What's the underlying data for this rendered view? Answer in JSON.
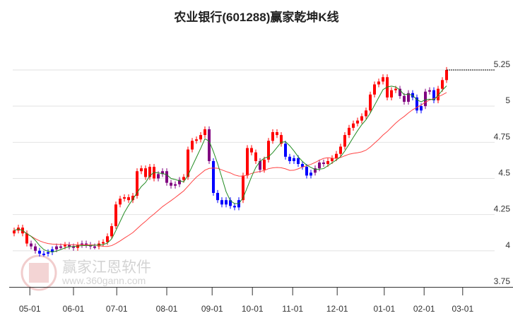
{
  "chart_data": {
    "type": "candlestick",
    "title": "农业银行(601288)赢家乾坤K线",
    "ylim": [
      3.75,
      5.25
    ],
    "yticks": [
      3.75,
      4,
      4.25,
      4.5,
      4.75,
      5,
      5.25
    ],
    "ytick_labels": [
      "3.75",
      "4",
      "4.25",
      "4.5",
      "4.75",
      "5",
      "5.25"
    ],
    "grid": true,
    "xticks": [
      {
        "label": "05-01",
        "pos": 3.7
      },
      {
        "label": "06-01",
        "pos": 14
      },
      {
        "label": "07-01",
        "pos": 24.2
      },
      {
        "label": "08-01",
        "pos": 36
      },
      {
        "label": "09-01",
        "pos": 46.7
      },
      {
        "label": "10-01",
        "pos": 56.2
      },
      {
        "label": "11-01",
        "pos": 65.7
      },
      {
        "label": "12-01",
        "pos": 76.2
      },
      {
        "label": "01-01",
        "pos": 87.3
      },
      {
        "label": "02-01",
        "pos": 96.7
      },
      {
        "label": "03-01",
        "pos": 105.8
      }
    ],
    "close": [
      4.14,
      4.16,
      4.12,
      4.05,
      4.03,
      4.0,
      3.98,
      3.98,
      3.99,
      4.01,
      4.03,
      4.03,
      4.04,
      4.03,
      4.02,
      4.04,
      4.05,
      4.04,
      4.03,
      4.03,
      4.05,
      4.06,
      4.1,
      4.17,
      4.32,
      4.36,
      4.37,
      4.35,
      4.38,
      4.55,
      4.57,
      4.51,
      4.58,
      4.5,
      4.53,
      4.55,
      4.47,
      4.45,
      4.46,
      4.49,
      4.51,
      4.7,
      4.76,
      4.77,
      4.8,
      4.84,
      4.62,
      4.4,
      4.35,
      4.32,
      4.35,
      4.31,
      4.3,
      4.35,
      4.52,
      4.71,
      4.68,
      4.62,
      4.56,
      4.63,
      4.76,
      4.82,
      4.8,
      4.74,
      4.65,
      4.62,
      4.64,
      4.6,
      4.58,
      4.52,
      4.54,
      4.57,
      4.61,
      4.6,
      4.62,
      4.64,
      4.67,
      4.72,
      4.8,
      4.85,
      4.88,
      4.9,
      4.93,
      4.97,
      5.08,
      5.15,
      5.17,
      5.2,
      5.06,
      5.11,
      5.12,
      5.07,
      5.03,
      5.09,
      5.06,
      4.97,
      5.0,
      5.1,
      5.11,
      5.04,
      5.12,
      5.18,
      5.25
    ],
    "state": "RRRRPPBBBBPPRPPRPPPPRRRRRRRRRRRRRRPPPPPPRRRRRRPBBBBBBBRRRRPRRRRRBBBBBBBPPPRRRRRRRRRRRRRRRRRPPPBBBPPBRRR",
    "state_colors": {
      "R": "#ff0000",
      "B": "#0000ff",
      "P": "#800080"
    },
    "ma_short_color": "#228b22",
    "ma_long_color": "#ff4444",
    "last_price": 5.25
  },
  "watermark": {
    "brand": "赢家江恩软件",
    "url": "www.360gann.com",
    "seal": "江赢恩家"
  }
}
